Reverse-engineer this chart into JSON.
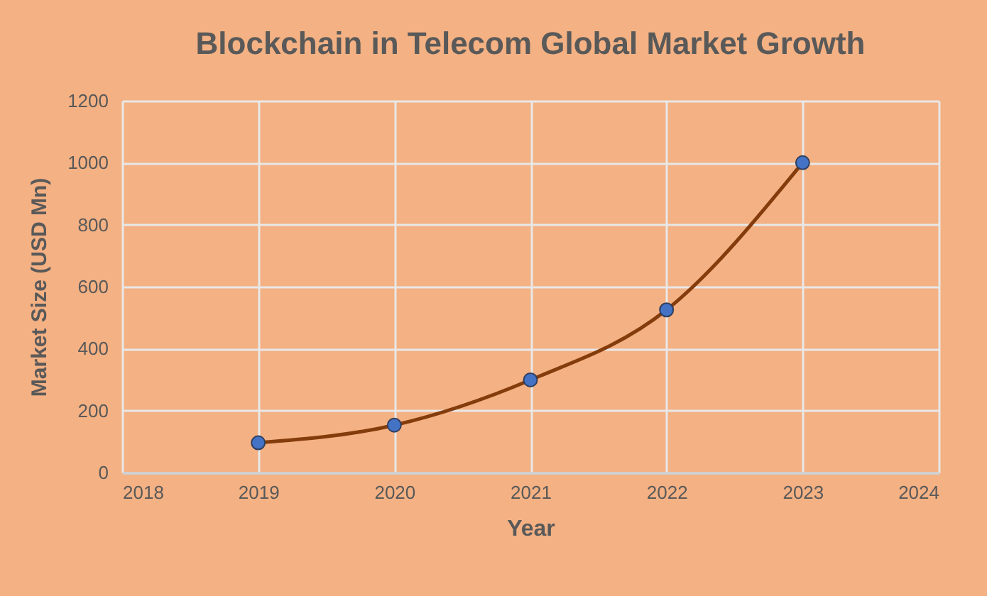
{
  "chart_data": {
    "type": "line",
    "title": "Blockchain in Telecom Global Market Growth",
    "xlabel": "Year",
    "ylabel": "Market  Size (USD Mn)",
    "x": [
      2019,
      2020,
      2021,
      2022,
      2023
    ],
    "series": [
      {
        "color": "#843c0c",
        "values": [
          96,
          153,
          299,
          525,
          1000
        ]
      }
    ],
    "xlim": [
      2018,
      2024
    ],
    "xticks": [
      2018,
      2019,
      2020,
      2021,
      2022,
      2023,
      2024
    ],
    "ylim": [
      0,
      1200
    ],
    "yticks": [
      0,
      200,
      400,
      600,
      800,
      1000,
      1200
    ],
    "grid": true,
    "marker": "circle",
    "line_style": "solid"
  }
}
